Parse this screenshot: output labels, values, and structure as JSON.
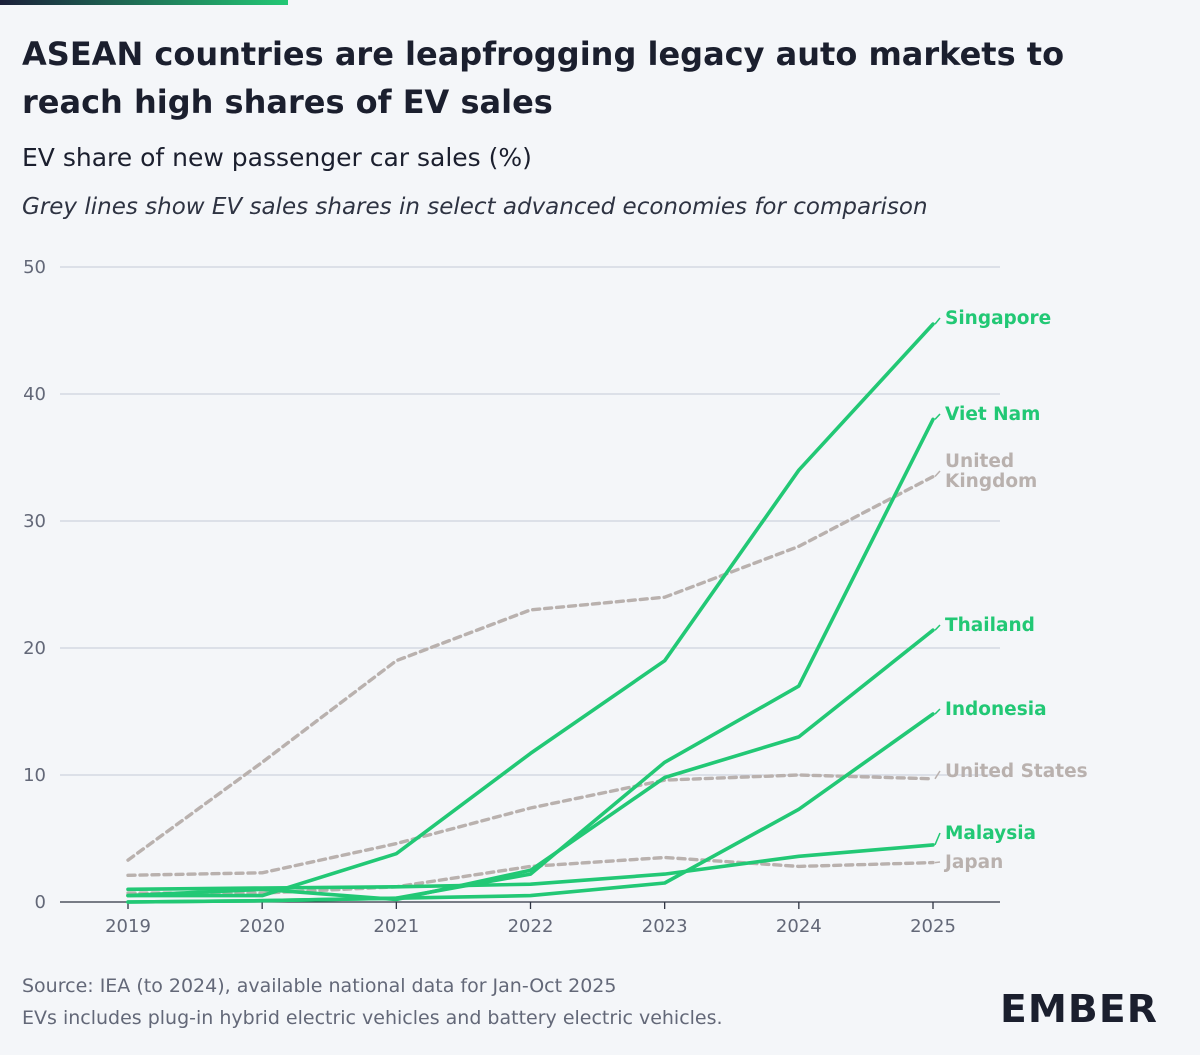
{
  "colors": {
    "asean": "#22c875",
    "comparison": "#b9b1ae",
    "grid": "#c5cad8",
    "accent_dark": "#1b1f3a"
  },
  "header": {
    "title": "ASEAN countries are leapfrogging legacy auto markets to reach high shares of EV sales",
    "subtitle": "EV share of new passenger car sales (%)",
    "note": "Grey lines show EV sales shares in select advanced economies for comparison"
  },
  "footer": {
    "source": "Source: IEA (to 2024), available national data for Jan-Oct 2025",
    "definition": "EVs includes plug-in hybrid electric vehicles and battery electric vehicles.",
    "brand": "EMBER"
  },
  "chart_data": {
    "type": "line",
    "title": "ASEAN countries are leapfrogging legacy auto markets to reach high shares of EV sales",
    "ylabel": "EV share of new passenger car sales (%)",
    "xlabel": "",
    "ylim": [
      0,
      50
    ],
    "yticks": [
      0,
      10,
      20,
      30,
      40,
      50
    ],
    "x": [
      "2019",
      "2020",
      "2021",
      "2022",
      "2023",
      "2024",
      "2025"
    ],
    "series": [
      {
        "name": "United Kingdom",
        "label_lines": [
          "United",
          "Kingdom"
        ],
        "group": "comparison",
        "style": "dashed",
        "values": [
          3.3,
          11,
          19,
          23,
          24,
          28,
          33.5
        ]
      },
      {
        "name": "United States",
        "label_lines": [
          "United States"
        ],
        "group": "comparison",
        "style": "dashed",
        "values": [
          2.1,
          2.3,
          4.6,
          7.4,
          9.6,
          10,
          9.7
        ]
      },
      {
        "name": "Japan",
        "label_lines": [
          "Japan"
        ],
        "group": "comparison",
        "style": "dashed",
        "values": [
          0.7,
          0.7,
          1.2,
          2.8,
          3.5,
          2.8,
          3.1
        ]
      },
      {
        "name": "Singapore",
        "label_lines": [
          "Singapore"
        ],
        "group": "asean",
        "style": "solid",
        "values": [
          0.5,
          0.5,
          3.8,
          11.7,
          19,
          34,
          45.5
        ]
      },
      {
        "name": "Viet Nam",
        "label_lines": [
          "Viet Nam"
        ],
        "group": "asean",
        "style": "solid",
        "values": [
          0,
          0.1,
          0.3,
          2.2,
          11,
          17,
          38
        ]
      },
      {
        "name": "Thailand",
        "label_lines": [
          "Thailand"
        ],
        "group": "asean",
        "style": "solid",
        "values": [
          0.5,
          1,
          0.2,
          2.5,
          9.8,
          13,
          21.4
        ]
      },
      {
        "name": "Indonesia",
        "label_lines": [
          "Indonesia"
        ],
        "group": "asean",
        "style": "solid",
        "values": [
          0,
          0.1,
          0.3,
          0.5,
          1.5,
          7.3,
          14.8
        ]
      },
      {
        "name": "Malaysia",
        "label_lines": [
          "Malaysia"
        ],
        "group": "asean",
        "style": "solid",
        "values": [
          1,
          1.1,
          1.2,
          1.4,
          2.2,
          3.6,
          4.5
        ]
      }
    ]
  }
}
